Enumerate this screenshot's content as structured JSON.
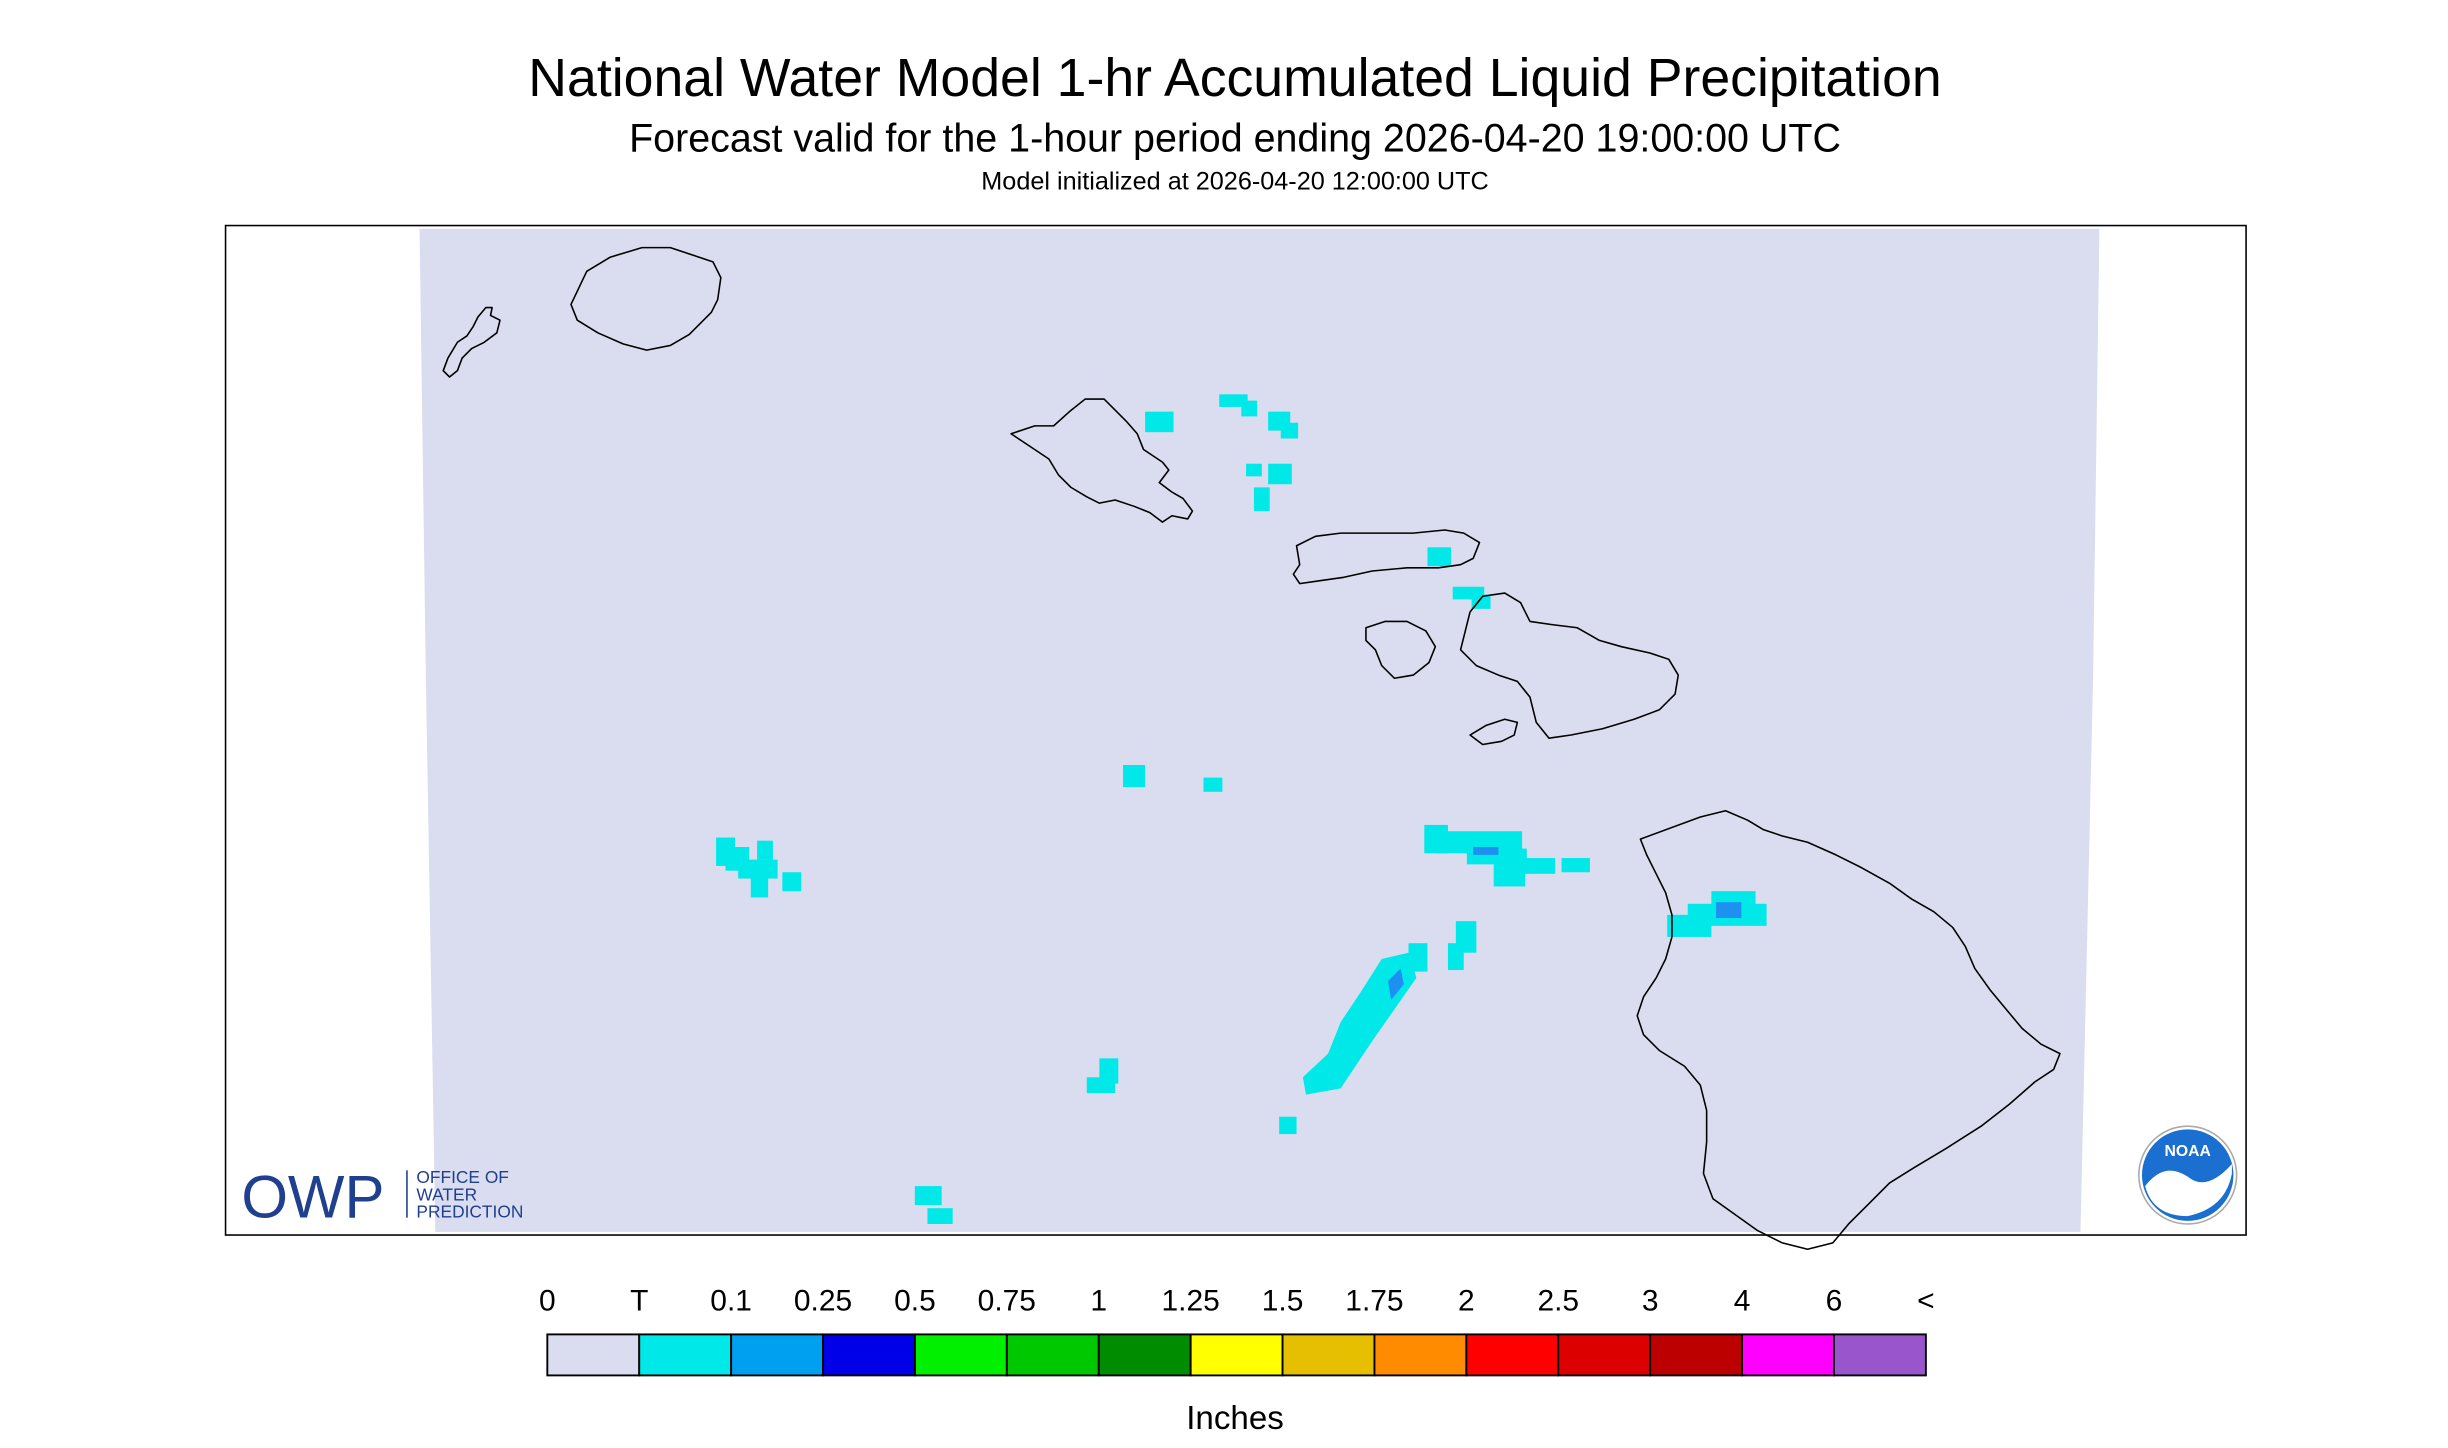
{
  "header": {
    "title": "National Water Model 1-hr Accumulated Liquid Precipitation",
    "subtitle": "Forecast valid for the 1-hour period ending 2026-04-20 19:00:00 UTC",
    "initialized": "Model initialized at 2026-04-20 12:00:00 UTC"
  },
  "legend": {
    "labels": [
      "0",
      "T",
      "0.1",
      "0.25",
      "0.5",
      "0.75",
      "1",
      "1.25",
      "1.5",
      "1.75",
      "2",
      "2.5",
      "3",
      "4",
      "6",
      "<"
    ],
    "colors": [
      "#dadcef",
      "#00e8e8",
      "#00a0f0",
      "#0000e8",
      "#00f000",
      "#00c800",
      "#008c00",
      "#ffff00",
      "#e6c000",
      "#ff8c00",
      "#ff0000",
      "#dc0000",
      "#bc0000",
      "#ff00ff",
      "#9955cc"
    ],
    "unit": "Inches"
  },
  "logos": {
    "owp": {
      "mark": "OWP",
      "lines": [
        "OFFICE OF",
        "WATER",
        "PREDICTION"
      ]
    },
    "noaa": "NOAA"
  }
}
